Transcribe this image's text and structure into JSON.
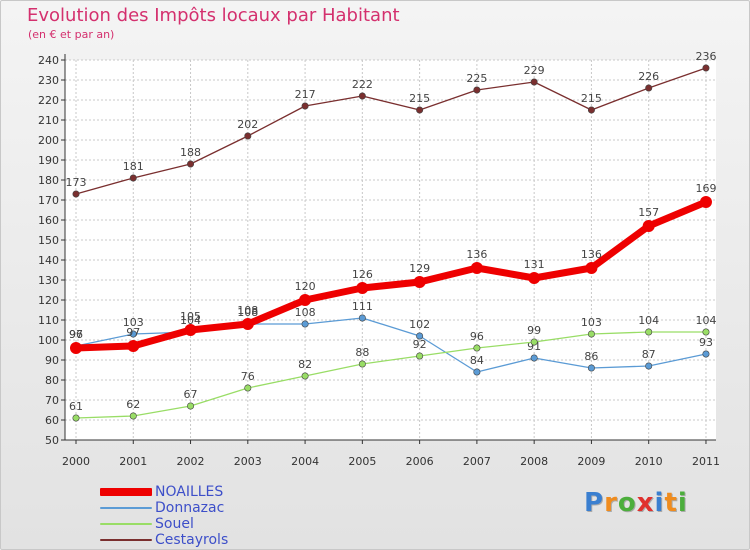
{
  "header": {
    "title": "Evolution des Impôts locaux par Habitant",
    "subtitle": "(en € et par an)"
  },
  "colors": {
    "title": "#d4306e",
    "legend_text": "#3d4fc9",
    "axis": "#333333",
    "grid": "#c8c8c8"
  },
  "logo": {
    "text": "Proxiti",
    "letters": [
      {
        "char": "P",
        "color": "#3a7fd0"
      },
      {
        "char": "r",
        "color": "#f08c1e"
      },
      {
        "char": "o",
        "color": "#4cae3c"
      },
      {
        "char": "x",
        "color": "#e0312e"
      },
      {
        "char": "i",
        "color": "#3a7fd0"
      },
      {
        "char": "t",
        "color": "#f08c1e"
      },
      {
        "char": "i",
        "color": "#4cae3c"
      }
    ]
  },
  "chart_data": {
    "type": "line",
    "title": "Evolution des Impôts locaux par Habitant",
    "subtitle": "(en € et par an)",
    "xlabel": "",
    "ylabel": "",
    "categories": [
      "2000",
      "2001",
      "2002",
      "2003",
      "2004",
      "2005",
      "2006",
      "2007",
      "2008",
      "2009",
      "2010",
      "2011"
    ],
    "ylim": [
      50,
      240
    ],
    "yticks": [
      50,
      60,
      70,
      80,
      90,
      100,
      110,
      120,
      130,
      140,
      150,
      160,
      170,
      180,
      190,
      200,
      210,
      220,
      230,
      240
    ],
    "grid": true,
    "legend_position": "bottom-left",
    "series": [
      {
        "name": "NOAILLES",
        "color": "#ee0000",
        "emphasis": true,
        "values": [
          96,
          97,
          105,
          108,
          120,
          126,
          129,
          136,
          131,
          136,
          157,
          169
        ]
      },
      {
        "name": "Donnazac",
        "color": "#5b9bd5",
        "emphasis": false,
        "values": [
          97,
          103,
          104,
          108,
          108,
          111,
          102,
          84,
          91,
          86,
          87,
          93
        ]
      },
      {
        "name": "Souel",
        "color": "#99dd66",
        "emphasis": false,
        "values": [
          61,
          62,
          67,
          76,
          82,
          88,
          92,
          96,
          99,
          103,
          104,
          104
        ]
      },
      {
        "name": "Cestayrols",
        "color": "#7a2f2f",
        "emphasis": false,
        "values": [
          173,
          181,
          188,
          202,
          217,
          222,
          215,
          225,
          229,
          215,
          226,
          236
        ]
      }
    ]
  }
}
